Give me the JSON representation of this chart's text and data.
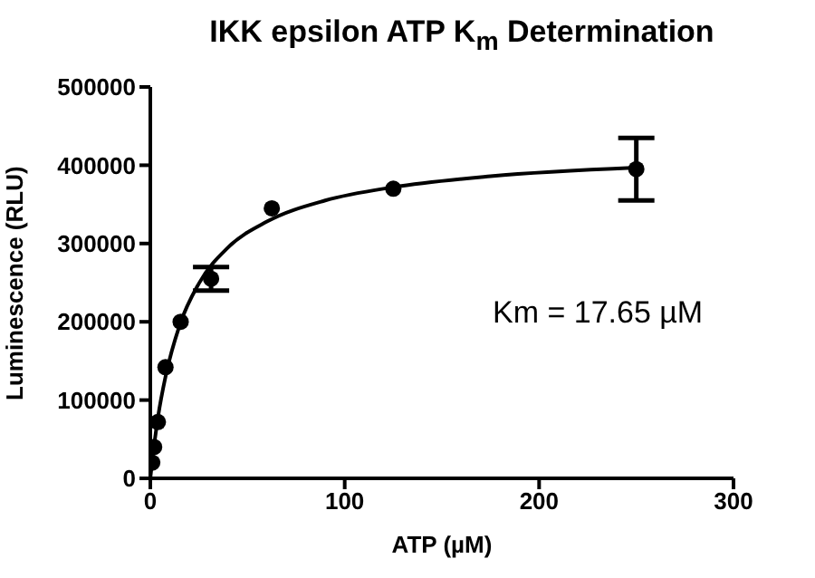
{
  "chart_data": {
    "type": "scatter",
    "title": "IKK epsilon ATP K$_{m}$ Determination",
    "xlabel": "ATP (µM)",
    "ylabel": "Luminescence (RLU)",
    "xlim": [
      0,
      300
    ],
    "xticks": [
      0,
      100,
      200,
      300
    ],
    "ylim": [
      0,
      500000
    ],
    "yticks": [
      0,
      100000,
      200000,
      300000,
      400000,
      500000
    ],
    "marker": "circle",
    "annotations": [
      "Km = 17.65 µM"
    ],
    "series": [
      {
        "color": "#000000",
        "x": [
          0.98,
          1.95,
          3.9,
          7.8,
          15.6,
          31.25,
          62.5,
          125,
          250
        ],
        "values": [
          20000,
          40000,
          72000,
          142000,
          200000,
          255000,
          345000,
          370000,
          395000
        ],
        "errors": [
          null,
          null,
          null,
          null,
          null,
          15000,
          null,
          null,
          40000
        ]
      },
      {
        "type": "line",
        "color": "#000000",
        "marker": "none",
        "x": [
          0,
          1,
          2,
          4,
          8,
          15,
          25,
          40,
          60,
          90,
          125,
          175,
          250
        ],
        "values": [
          0,
          23000,
          43000,
          79000,
          132000,
          195000,
          249000,
          295000,
          328000,
          355000,
          372000,
          386000,
          397000
        ]
      }
    ]
  }
}
